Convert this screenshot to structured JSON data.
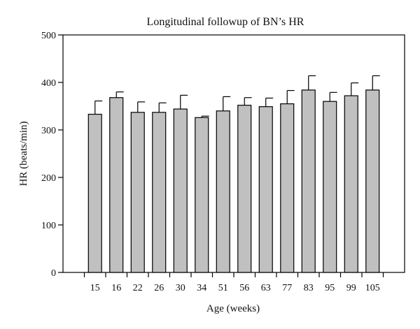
{
  "chart_data": {
    "type": "bar",
    "title": "Longitudinal followup of BN’s HR",
    "xlabel": "Age (weeks)",
    "ylabel": "HR (beats/min)",
    "ylim": [
      0,
      500
    ],
    "yticks": [
      0,
      100,
      200,
      300,
      400,
      500
    ],
    "categories": [
      "15",
      "16",
      "22",
      "26",
      "30",
      "34",
      "51",
      "56",
      "63",
      "77",
      "83",
      "95",
      "99",
      "105"
    ],
    "values": [
      333,
      368,
      337,
      337,
      344,
      326,
      340,
      352,
      349,
      355,
      384,
      360,
      372,
      384
    ],
    "error_upper": [
      28,
      12,
      22,
      20,
      29,
      3,
      30,
      16,
      18,
      28,
      30,
      19,
      27,
      30
    ],
    "error_bars": "upper only",
    "bar_color": "#c0c0c0",
    "bar_edge_color": "#000000",
    "grid": false,
    "legend": "none"
  }
}
